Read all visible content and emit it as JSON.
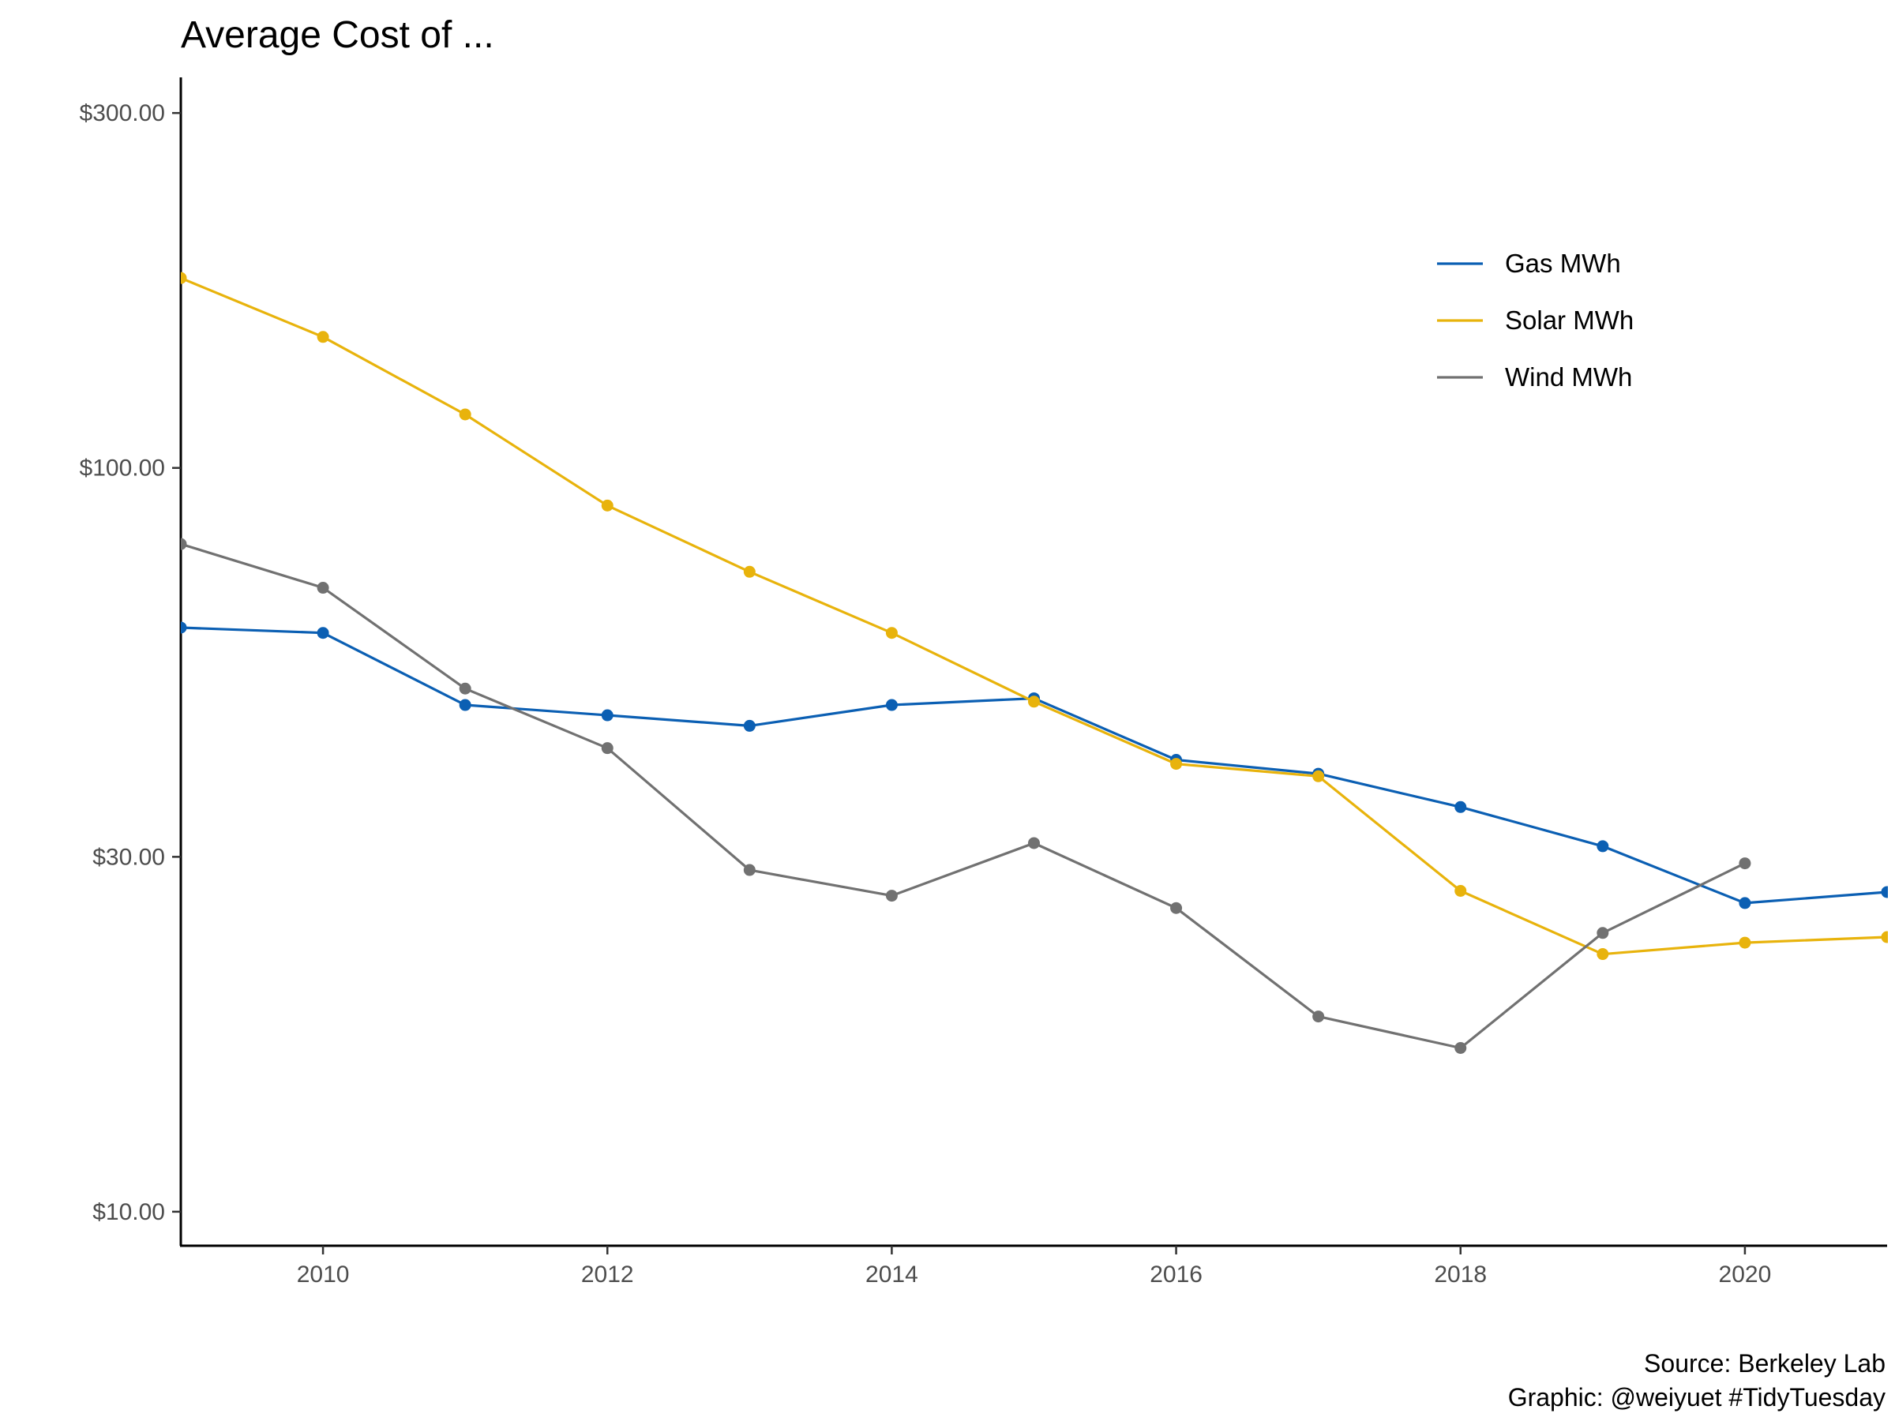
{
  "chart_data": {
    "type": "line",
    "title": "Average Cost of ...",
    "xlabel": "",
    "ylabel": "",
    "x": [
      2009,
      2010,
      2011,
      2012,
      2013,
      2014,
      2015,
      2016,
      2017,
      2018,
      2019,
      2020,
      2021
    ],
    "xlim": [
      2009,
      2021
    ],
    "x_ticks": [
      2010,
      2012,
      2014,
      2016,
      2018,
      2020
    ],
    "y_scale": "log",
    "ylim": [
      9,
      335
    ],
    "y_ticks": [
      10,
      30,
      100,
      300
    ],
    "y_tick_labels": [
      "$10.00",
      "$30.00",
      "$100.00",
      "$300.00"
    ],
    "grid": false,
    "legend_position": "top-right",
    "series": [
      {
        "name": "Gas MWh",
        "color": "#0b5fb3",
        "values": [
          61,
          60,
          48,
          46.5,
          45,
          48,
          49,
          40.5,
          38.8,
          35,
          31,
          26,
          26.9
        ]
      },
      {
        "name": "Solar MWh",
        "color": "#e8b30c",
        "values": [
          180,
          150,
          118,
          89,
          72.5,
          60,
          48.5,
          40,
          38.5,
          27,
          22.2,
          23,
          23.4
        ]
      },
      {
        "name": "Wind MWh",
        "color": "#717171",
        "values": [
          79,
          69,
          50.5,
          42,
          28.8,
          26.6,
          31.3,
          25.6,
          18.3,
          16.6,
          23.7,
          29.4,
          null
        ]
      }
    ],
    "caption": [
      "Source: Berkeley Lab",
      "Graphic: @weiyuet #TidyTuesday"
    ]
  }
}
